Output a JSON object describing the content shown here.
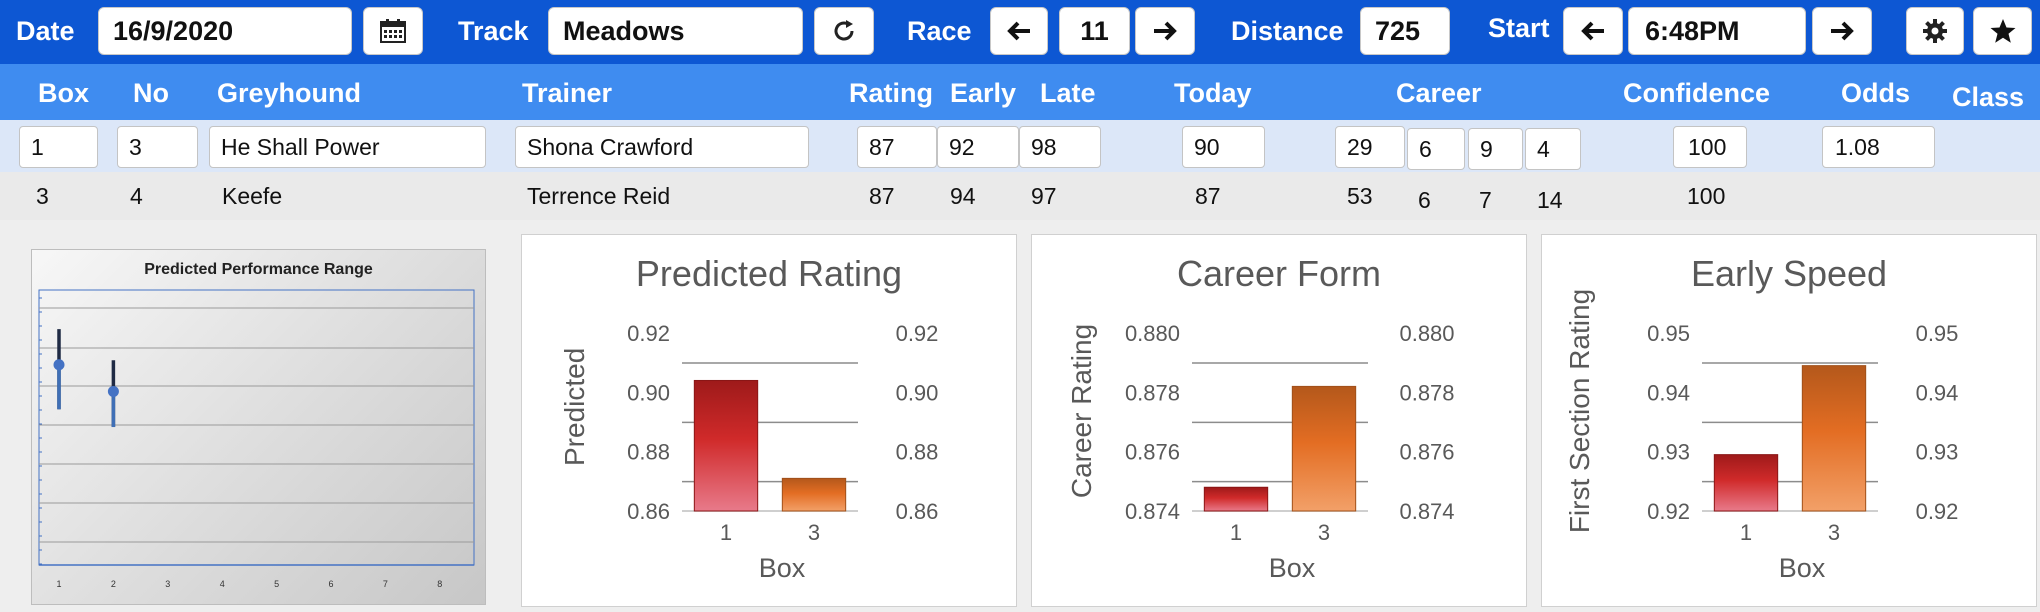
{
  "toolbar": {
    "date_label": "Date",
    "date_value": "16/9/2020",
    "calendar_icon": "calendar-icon",
    "track_label": "Track",
    "track_value": "Meadows",
    "refresh_icon": "refresh-icon",
    "race_label": "Race",
    "race_value": "11",
    "distance_label": "Distance",
    "distance_value": "725",
    "start_label": "Start",
    "start_value": "6:48PM",
    "settings_icon": "gear-icon",
    "favorite_icon": "star-icon"
  },
  "columns": {
    "box": "Box",
    "no": "No",
    "greyhound": "Greyhound",
    "trainer": "Trainer",
    "rating": "Rating",
    "early": "Early",
    "late": "Late",
    "today": "Today",
    "career": "Career",
    "confidence": "Confidence",
    "odds": "Odds",
    "class": "Class"
  },
  "rows": [
    {
      "box": "1",
      "no": "3",
      "greyhound": "He Shall Power",
      "trainer": "Shona Crawford",
      "rating": "87",
      "early": "92",
      "late": "98",
      "today": "90",
      "career": [
        "29",
        "6",
        "9",
        "4"
      ],
      "confidence": "100",
      "odds": "1.08"
    },
    {
      "box": "3",
      "no": "4",
      "greyhound": "Keefe",
      "trainer": "Terrence Reid",
      "rating": "87",
      "early": "94",
      "late": "97",
      "today": "87",
      "career": [
        "53",
        "6",
        "7",
        "14"
      ],
      "confidence": "100"
    }
  ],
  "colors": {
    "toolbar": "#0d57d3",
    "header": "#3f8cf0",
    "selected_row": "#dce7f8",
    "bar_red_top": "#9e1a1a",
    "bar_red_bottom": "#e87a8a",
    "bar_orange_top": "#b4581b",
    "bar_orange_bottom": "#f2a068",
    "error_bar_point": "#4472c4"
  },
  "chart_data": [
    {
      "type": "scatter",
      "title": "Predicted Performance Range",
      "x": [
        1,
        2,
        3,
        4,
        5,
        6,
        7,
        8
      ],
      "xticks": [
        "1",
        "2",
        "3",
        "4",
        "5",
        "6",
        "7",
        "8"
      ],
      "grid": true,
      "legend": "none",
      "points": [
        {
          "x": 1,
          "y": 0.905,
          "low": 0.895,
          "high": 0.913
        },
        {
          "x": 2,
          "y": 0.899,
          "low": 0.891,
          "high": 0.906
        }
      ]
    },
    {
      "type": "bar",
      "title": "Predicted Rating",
      "xlabel": "Box",
      "ylabel": "Predicted",
      "categories": [
        "1",
        "3"
      ],
      "values": [
        0.904,
        0.871
      ],
      "ylim": [
        0.86,
        0.92
      ],
      "yticks": [
        "0.92",
        "0.90",
        "0.88",
        "0.86"
      ],
      "secondary_yticks": [
        "0.92",
        "0.90",
        "0.88",
        "0.86"
      ],
      "grid": true
    },
    {
      "type": "bar",
      "title": "Career Form",
      "xlabel": "Box",
      "ylabel": "Career Rating",
      "categories": [
        "1",
        "3"
      ],
      "values": [
        0.8748,
        0.8782
      ],
      "ylim": [
        0.874,
        0.88
      ],
      "yticks": [
        "0.880",
        "0.878",
        "0.876",
        "0.874"
      ],
      "secondary_yticks": [
        "0.880",
        "0.878",
        "0.876",
        "0.874"
      ],
      "grid": true
    },
    {
      "type": "bar",
      "title": "Early Speed",
      "xlabel": "Box",
      "ylabel": "First Section Rating",
      "categories": [
        "1",
        "3"
      ],
      "values": [
        0.9295,
        0.9445
      ],
      "ylim": [
        0.92,
        0.95
      ],
      "yticks": [
        "0.95",
        "0.94",
        "0.93",
        "0.92"
      ],
      "secondary_yticks": [
        "0.95",
        "0.94",
        "0.93",
        "0.92"
      ],
      "grid": true
    }
  ]
}
